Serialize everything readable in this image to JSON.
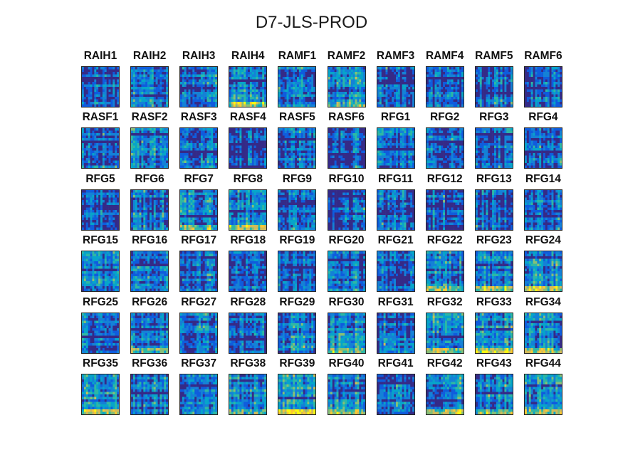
{
  "chart_data": {
    "type": "heatmap",
    "title": "D7-JLS-PROD",
    "rows": 6,
    "cols": 10,
    "colormap": "parula",
    "colors": [
      "#352a87",
      "#0f5cdd",
      "#1481d6",
      "#06a4ca",
      "#2eb7a4",
      "#87bf77",
      "#d1bb59",
      "#fec832",
      "#f9fb0e"
    ],
    "panels": [
      "RAIH1",
      "RAIH2",
      "RAIH3",
      "RAIH4",
      "RAMF1",
      "RAMF2",
      "RAMF3",
      "RAMF4",
      "RAMF5",
      "RAMF6",
      "RASF1",
      "RASF2",
      "RASF3",
      "RASF4",
      "RASF5",
      "RASF6",
      "RFG1",
      "RFG2",
      "RFG3",
      "RFG4",
      "RFG5",
      "RFG6",
      "RFG7",
      "RFG8",
      "RFG9",
      "RFG10",
      "RFG11",
      "RFG12",
      "RFG13",
      "RFG14",
      "RFG15",
      "RFG16",
      "RFG17",
      "RFG18",
      "RFG19",
      "RFG20",
      "RFG21",
      "RFG22",
      "RFG23",
      "RFG24",
      "RFG25",
      "RFG26",
      "RFG27",
      "RFG28",
      "RFG29",
      "RFG30",
      "RFG31",
      "RFG32",
      "RFG33",
      "RFG34",
      "RFG35",
      "RFG36",
      "RFG37",
      "RFG38",
      "RFG39",
      "RFG40",
      "RFG41",
      "RFG42",
      "RFG43",
      "RFG44"
    ],
    "brightness": [
      0.35,
      0.45,
      0.35,
      0.55,
      0.45,
      0.5,
      0.3,
      0.3,
      0.4,
      0.25,
      0.4,
      0.45,
      0.4,
      0.3,
      0.35,
      0.35,
      0.35,
      0.35,
      0.35,
      0.4,
      0.35,
      0.45,
      0.5,
      0.5,
      0.35,
      0.3,
      0.35,
      0.4,
      0.35,
      0.35,
      0.4,
      0.4,
      0.35,
      0.45,
      0.35,
      0.35,
      0.35,
      0.5,
      0.5,
      0.6,
      0.35,
      0.5,
      0.45,
      0.4,
      0.45,
      0.5,
      0.45,
      0.55,
      0.6,
      0.5,
      0.55,
      0.4,
      0.45,
      0.5,
      0.6,
      0.5,
      0.35,
      0.55,
      0.55,
      0.5
    ]
  }
}
